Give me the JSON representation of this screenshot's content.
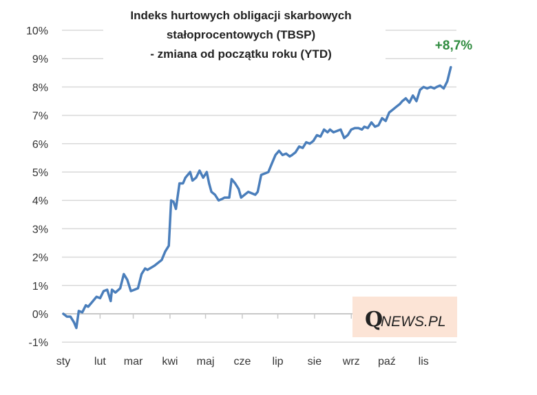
{
  "chart_data": {
    "type": "line",
    "title": [
      "Indeks hurtowych obligacji skarbowych",
      "stałoprocentowych (TBSP)",
      "- zmiana od początku roku (YTD)"
    ],
    "xlabel": "",
    "ylabel": "",
    "ylim": [
      -1,
      10
    ],
    "yticks": [
      -1,
      0,
      1,
      2,
      3,
      4,
      5,
      6,
      7,
      8,
      9,
      10
    ],
    "ytick_labels": [
      "-1%",
      "0%",
      "1%",
      "2%",
      "3%",
      "4%",
      "5%",
      "6%",
      "7%",
      "8%",
      "9%",
      "10%"
    ],
    "month_labels": [
      "sty",
      "lut",
      "mar",
      "kwi",
      "maj",
      "cze",
      "lip",
      "sie",
      "wrz",
      "paź",
      "lis"
    ],
    "month_start_days": [
      0,
      31,
      59,
      90,
      120,
      151,
      181,
      212,
      243,
      273,
      304
    ],
    "x_unit": "day of year",
    "grid": true,
    "series": [
      {
        "name": "TBSP YTD",
        "color": "#4a7ebb",
        "x": [
          0,
          3,
          6,
          9,
          11,
          13,
          16,
          19,
          21,
          25,
          28,
          31,
          34,
          37,
          40,
          41,
          44,
          48,
          51,
          54,
          57,
          60,
          63,
          66,
          69,
          71,
          77,
          83,
          86,
          89,
          91,
          93,
          95,
          98,
          101,
          103,
          107,
          109,
          112,
          115,
          118,
          121,
          123,
          125,
          128,
          131,
          134,
          136,
          140,
          142,
          145,
          148,
          150,
          153,
          156,
          159,
          162,
          164,
          167,
          170,
          173,
          176,
          179,
          182,
          185,
          188,
          191,
          193,
          196,
          199,
          202,
          205,
          208,
          211,
          214,
          217,
          220,
          223,
          225,
          228,
          231,
          234,
          237,
          240,
          243,
          246,
          249,
          252,
          254,
          257,
          260,
          263,
          266,
          269,
          272,
          275,
          278,
          281,
          284,
          286,
          289,
          292,
          295,
          298,
          301,
          304,
          307,
          310,
          313,
          315,
          318,
          321,
          324,
          327
        ],
        "values": [
          0.0,
          -0.1,
          -0.1,
          -0.3,
          -0.5,
          0.1,
          0.05,
          0.3,
          0.25,
          0.45,
          0.6,
          0.55,
          0.8,
          0.85,
          0.45,
          0.85,
          0.75,
          0.9,
          1.4,
          1.2,
          0.8,
          0.85,
          0.9,
          1.4,
          1.6,
          1.55,
          1.7,
          1.9,
          2.2,
          2.4,
          4.0,
          3.95,
          3.7,
          4.6,
          4.6,
          4.8,
          5.0,
          4.7,
          4.8,
          5.05,
          4.8,
          5.0,
          4.6,
          4.3,
          4.2,
          4.0,
          4.05,
          4.1,
          4.1,
          4.75,
          4.6,
          4.4,
          4.1,
          4.2,
          4.3,
          4.25,
          4.2,
          4.3,
          4.9,
          4.95,
          5.0,
          5.3,
          5.6,
          5.75,
          5.6,
          5.65,
          5.55,
          5.6,
          5.7,
          5.9,
          5.85,
          6.05,
          6.0,
          6.1,
          6.3,
          6.25,
          6.5,
          6.4,
          6.5,
          6.4,
          6.45,
          6.5,
          6.2,
          6.3,
          6.5,
          6.55,
          6.55,
          6.5,
          6.6,
          6.55,
          6.75,
          6.6,
          6.65,
          6.9,
          6.8,
          7.1,
          7.2,
          7.3,
          7.4,
          7.5,
          7.6,
          7.45,
          7.7,
          7.5,
          7.9,
          8.0,
          7.95,
          8.0,
          7.95,
          8.0,
          8.05,
          7.95,
          8.2,
          8.7
        ]
      }
    ],
    "annotations": [
      {
        "text": "+8,7%",
        "color": "#2e8b3e",
        "position": "top-right"
      }
    ],
    "watermark": {
      "q": "Q",
      "text": "NEWS.PL",
      "background": "#fce4d6"
    }
  }
}
